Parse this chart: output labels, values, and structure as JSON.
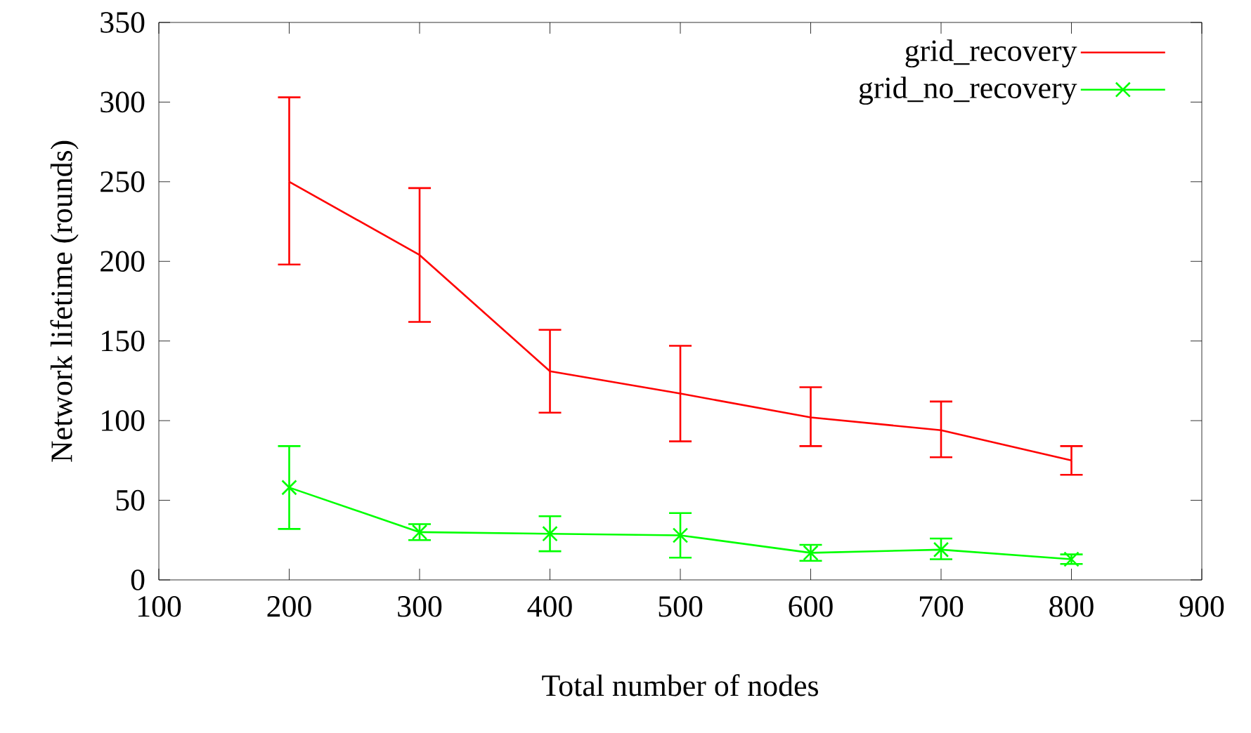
{
  "chart_data": {
    "type": "line",
    "xlabel": "Total number of nodes",
    "ylabel": "Network lifetime (rounds)",
    "x": [
      200,
      300,
      400,
      500,
      600,
      700,
      800
    ],
    "series": [
      {
        "name": "grid_recovery",
        "color": "#ff0000",
        "marker": "none",
        "values": [
          250,
          204,
          131,
          117,
          102,
          94,
          75
        ],
        "errors": [
          [
            198,
            303
          ],
          [
            162,
            246
          ],
          [
            105,
            157
          ],
          [
            87,
            147
          ],
          [
            84,
            121
          ],
          [
            77,
            112
          ],
          [
            66,
            84
          ]
        ]
      },
      {
        "name": "grid_no_recovery",
        "color": "#00ff00",
        "marker": "cross",
        "values": [
          58,
          30,
          29,
          28,
          17,
          19,
          13
        ],
        "errors": [
          [
            32,
            84
          ],
          [
            25,
            35
          ],
          [
            18,
            40
          ],
          [
            14,
            42
          ],
          [
            12,
            22
          ],
          [
            13,
            26
          ],
          [
            10,
            16
          ]
        ]
      }
    ],
    "xlim": [
      100,
      900
    ],
    "xticks": [
      100,
      200,
      300,
      400,
      500,
      600,
      700,
      800,
      900
    ],
    "ylim": [
      0,
      350
    ],
    "yticks": [
      0,
      50,
      100,
      150,
      200,
      250,
      300,
      350
    ],
    "legend": "top right",
    "grid": false
  }
}
